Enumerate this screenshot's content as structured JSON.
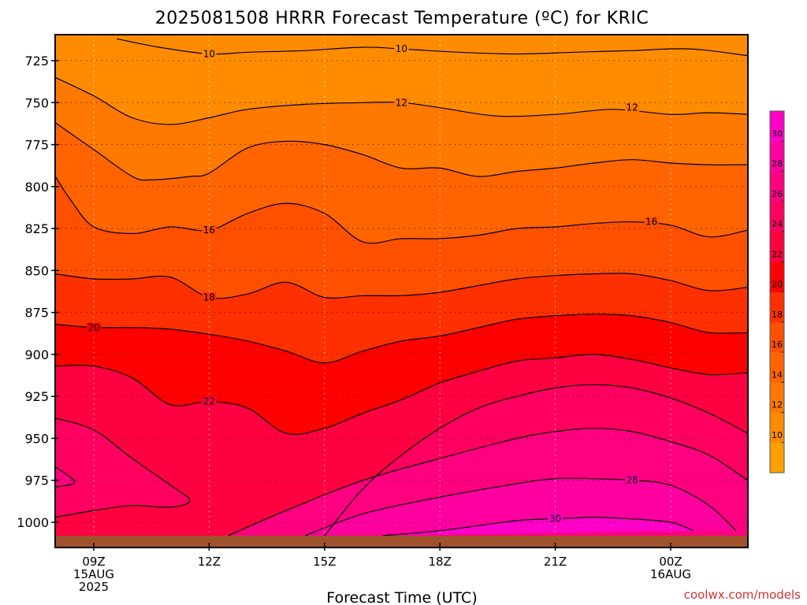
{
  "chart_data": {
    "type": "heatmap",
    "title": "2025081508 HRRR Forecast Temperature (ºC) for KRIC",
    "xlabel": "Forecast Time (UTC)",
    "ylabel": "",
    "y_ticks": [
      725,
      750,
      775,
      800,
      825,
      850,
      875,
      900,
      925,
      950,
      975,
      1000
    ],
    "y_range": [
      1012,
      710
    ],
    "y_inverted": true,
    "x_range_hours": [
      8,
      26
    ],
    "x_ticks": [
      {
        "hour": 9,
        "lines": [
          "09Z",
          "15AUG",
          "2025"
        ]
      },
      {
        "hour": 12,
        "lines": [
          "12Z"
        ]
      },
      {
        "hour": 15,
        "lines": [
          "15Z"
        ]
      },
      {
        "hour": 18,
        "lines": [
          "18Z"
        ]
      },
      {
        "hour": 21,
        "lines": [
          "21Z"
        ]
      },
      {
        "hour": 24,
        "lines": [
          "00Z",
          "16AUG"
        ]
      }
    ],
    "grid": "dotted",
    "surface_pressure_hpa": 1008,
    "surface_color": "#a0522d",
    "colorbar": {
      "placement": "right",
      "levels": [
        8,
        10,
        12,
        14,
        16,
        18,
        20,
        22,
        24,
        26,
        28,
        30,
        32
      ],
      "tick_labels": [
        "10",
        "12",
        "14",
        "16",
        "18",
        "20",
        "22",
        "24",
        "26",
        "28",
        "30"
      ],
      "colors": [
        "#ffa000",
        "#ff8c00",
        "#ff7800",
        "#ff6400",
        "#ff5000",
        "#ff3000",
        "#ff0000",
        "#ff0040",
        "#ff0060",
        "#ff0080",
        "#ff00a0",
        "#ff00c8"
      ]
    },
    "contours": [
      {
        "value": 10,
        "label": "10",
        "label_at": [
          [
            12.0,
            721
          ],
          [
            17.0,
            718
          ]
        ],
        "points": [
          [
            9.6,
            712
          ],
          [
            10.7,
            717
          ],
          [
            12.0,
            721
          ],
          [
            13.0,
            720
          ],
          [
            14.5,
            719
          ],
          [
            16.0,
            717
          ],
          [
            17.0,
            718
          ],
          [
            18.5,
            720
          ],
          [
            20.0,
            721
          ],
          [
            21.5,
            720
          ],
          [
            23.0,
            719
          ],
          [
            24.5,
            718
          ],
          [
            26.0,
            722
          ]
        ]
      },
      {
        "value": 12,
        "label": "12",
        "label_at": [
          [
            17.0,
            750
          ],
          [
            23.0,
            753
          ]
        ],
        "points": [
          [
            8.0,
            735
          ],
          [
            9.0,
            746
          ],
          [
            10.0,
            759
          ],
          [
            11.0,
            763
          ],
          [
            12.0,
            759
          ],
          [
            13.0,
            754
          ],
          [
            14.5,
            751
          ],
          [
            16.0,
            750
          ],
          [
            17.0,
            750
          ],
          [
            18.0,
            753
          ],
          [
            19.5,
            758
          ],
          [
            21.0,
            757
          ],
          [
            22.5,
            754
          ],
          [
            24.0,
            757
          ],
          [
            25.0,
            756
          ],
          [
            26.0,
            757
          ]
        ]
      },
      {
        "value": 14,
        "label": "",
        "label_at": [],
        "points": [
          [
            8.0,
            762
          ],
          [
            9.0,
            778
          ],
          [
            10.0,
            794
          ],
          [
            10.5,
            796
          ],
          [
            11.5,
            794
          ],
          [
            12.0,
            792
          ],
          [
            13.0,
            777
          ],
          [
            14.0,
            773
          ],
          [
            15.0,
            775
          ],
          [
            16.0,
            781
          ],
          [
            17.0,
            789
          ],
          [
            18.0,
            789
          ],
          [
            19.0,
            794
          ],
          [
            20.0,
            791
          ],
          [
            21.0,
            789
          ],
          [
            22.0,
            786
          ],
          [
            23.0,
            784
          ],
          [
            24.0,
            786
          ],
          [
            25.0,
            787
          ],
          [
            26.0,
            787
          ]
        ]
      },
      {
        "value": 16,
        "label": "16",
        "label_at": [
          [
            12.0,
            826
          ],
          [
            23.5,
            821
          ]
        ],
        "points": [
          [
            8.0,
            794
          ],
          [
            8.4,
            808
          ],
          [
            9.0,
            824
          ],
          [
            10.0,
            828
          ],
          [
            11.0,
            824
          ],
          [
            12.0,
            826
          ],
          [
            13.0,
            816
          ],
          [
            14.0,
            810
          ],
          [
            15.0,
            816
          ],
          [
            16.0,
            833
          ],
          [
            17.0,
            831
          ],
          [
            18.0,
            831
          ],
          [
            19.0,
            829
          ],
          [
            20.0,
            825
          ],
          [
            21.0,
            824
          ],
          [
            22.0,
            822
          ],
          [
            23.0,
            821
          ],
          [
            24.0,
            823
          ],
          [
            25.0,
            830
          ],
          [
            26.0,
            826
          ]
        ]
      },
      {
        "value": 18,
        "label": "18",
        "label_at": [
          [
            12.0,
            866
          ]
        ],
        "points": [
          [
            8.0,
            852
          ],
          [
            9.0,
            855
          ],
          [
            10.0,
            855
          ],
          [
            11.0,
            854
          ],
          [
            12.0,
            866
          ],
          [
            13.0,
            864
          ],
          [
            14.0,
            857
          ],
          [
            15.0,
            866
          ],
          [
            16.0,
            865
          ],
          [
            17.0,
            865
          ],
          [
            18.0,
            863
          ],
          [
            19.0,
            859
          ],
          [
            20.0,
            855
          ],
          [
            21.0,
            853
          ],
          [
            22.0,
            852
          ],
          [
            23.0,
            852
          ],
          [
            24.0,
            856
          ],
          [
            25.0,
            862
          ],
          [
            26.0,
            860
          ]
        ]
      },
      {
        "value": 20,
        "label": "20",
        "label_at": [
          [
            9.0,
            884
          ]
        ],
        "points": [
          [
            8.0,
            882
          ],
          [
            9.0,
            884
          ],
          [
            10.0,
            884
          ],
          [
            11.0,
            885
          ],
          [
            12.0,
            888
          ],
          [
            13.0,
            892
          ],
          [
            14.0,
            898
          ],
          [
            15.0,
            905
          ],
          [
            16.0,
            898
          ],
          [
            17.0,
            892
          ],
          [
            18.0,
            889
          ],
          [
            19.0,
            884
          ],
          [
            20.0,
            879
          ],
          [
            21.0,
            877
          ],
          [
            22.0,
            876
          ],
          [
            23.0,
            877
          ],
          [
            24.0,
            881
          ],
          [
            25.0,
            887
          ],
          [
            26.0,
            887
          ]
        ]
      },
      {
        "value": 22,
        "label": "22",
        "label_at": [
          [
            12.0,
            928
          ]
        ],
        "points": [
          [
            8.0,
            907
          ],
          [
            9.0,
            907
          ],
          [
            10.0,
            914
          ],
          [
            11.0,
            930
          ],
          [
            12.0,
            928
          ],
          [
            13.0,
            932
          ],
          [
            14.0,
            947
          ],
          [
            15.0,
            944
          ],
          [
            16.0,
            935
          ],
          [
            17.0,
            927
          ],
          [
            18.0,
            917
          ],
          [
            19.0,
            910
          ],
          [
            20.0,
            904
          ],
          [
            21.0,
            902
          ],
          [
            22.0,
            900
          ],
          [
            23.0,
            903
          ],
          [
            24.0,
            908
          ],
          [
            25.0,
            912
          ],
          [
            26.0,
            911
          ]
        ]
      },
      {
        "value": 24,
        "label": "",
        "label_at": [],
        "points": [
          [
            8.0,
            938
          ],
          [
            9.0,
            945
          ],
          [
            10.0,
            962
          ],
          [
            11.0,
            978
          ],
          [
            11.5,
            987
          ],
          [
            11.0,
            991
          ],
          [
            10.0,
            990
          ],
          [
            9.0,
            993
          ],
          [
            8.0,
            997
          ]
        ]
      },
      {
        "value": 24,
        "label": "",
        "label_at": [],
        "points": [
          [
            15.0,
            1008
          ],
          [
            16.0,
            980
          ],
          [
            17.0,
            960
          ],
          [
            18.0,
            944
          ],
          [
            19.0,
            932
          ],
          [
            20.0,
            925
          ],
          [
            21.0,
            920
          ],
          [
            22.0,
            918
          ],
          [
            23.0,
            920
          ],
          [
            24.0,
            926
          ],
          [
            25.0,
            935
          ],
          [
            26.0,
            947
          ]
        ]
      },
      {
        "value": 26,
        "label": "",
        "label_at": [],
        "points": [
          [
            8.0,
            967
          ],
          [
            8.5,
            976
          ],
          [
            8.0,
            979
          ]
        ]
      },
      {
        "value": 26,
        "label": "",
        "label_at": [],
        "points": [
          [
            12.5,
            1008
          ],
          [
            14.0,
            993
          ],
          [
            16.0,
            975
          ],
          [
            18.0,
            962
          ],
          [
            20.0,
            950
          ],
          [
            21.0,
            946
          ],
          [
            22.0,
            944
          ],
          [
            23.0,
            946
          ],
          [
            24.0,
            952
          ],
          [
            25.0,
            960
          ],
          [
            26.0,
            975
          ]
        ]
      },
      {
        "value": 28,
        "label": "28",
        "label_at": [
          [
            23.0,
            975
          ]
        ],
        "points": [
          [
            14.5,
            1008
          ],
          [
            16.0,
            995
          ],
          [
            18.0,
            985
          ],
          [
            20.0,
            977
          ],
          [
            21.0,
            974
          ],
          [
            22.0,
            974
          ],
          [
            23.0,
            975
          ],
          [
            24.0,
            978
          ],
          [
            25.0,
            990
          ],
          [
            25.7,
            1005
          ]
        ]
      },
      {
        "value": 30,
        "label": "30",
        "label_at": [
          [
            21.0,
            998
          ]
        ],
        "points": [
          [
            16.5,
            1008
          ],
          [
            18.0,
            1005
          ],
          [
            20.0,
            999
          ],
          [
            21.0,
            998
          ],
          [
            22.0,
            997
          ],
          [
            23.0,
            998
          ],
          [
            24.0,
            1000
          ],
          [
            24.6,
            1005
          ]
        ]
      }
    ]
  },
  "credit": "coolwx.com/models"
}
